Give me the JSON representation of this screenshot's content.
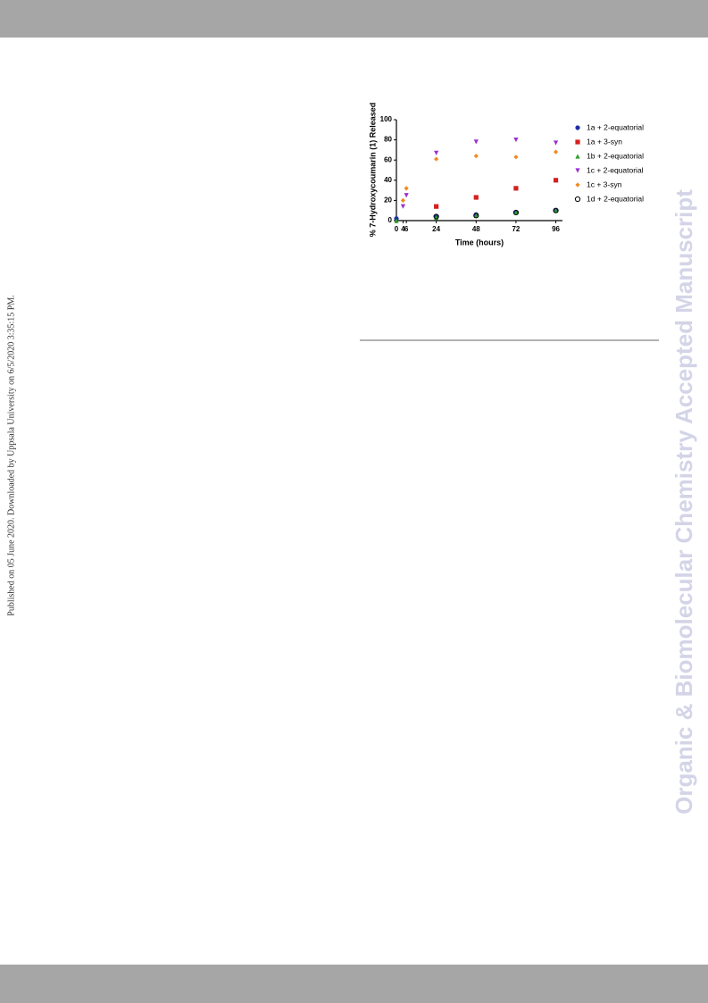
{
  "side_note": "Published on 05 June 2020. Downloaded by Uppsala University on 6/5/2020 3:35:15 PM.",
  "banner": "Organic & Biomolecular Chemistry Accepted Manuscript",
  "chart_data": {
    "type": "scatter",
    "x_label": "Time (hours)",
    "y_label": "% 7-Hydroxycoumarin (1) Released",
    "x": [
      0,
      4,
      6,
      24,
      48,
      72,
      96
    ],
    "xlim": [
      0,
      100
    ],
    "xticks": [
      0,
      4,
      6,
      24,
      48,
      72,
      96
    ],
    "ylim": [
      0,
      100
    ],
    "yticks": [
      0,
      20,
      40,
      60,
      80,
      100
    ],
    "series": [
      {
        "name": "1a + 2-equatorial",
        "color": "#1f2fa8",
        "marker": "circle",
        "values": [
          2,
          null,
          null,
          4,
          6,
          8,
          10
        ]
      },
      {
        "name": "1a + 3-syn",
        "color": "#d42020",
        "marker": "square",
        "values": [
          null,
          null,
          null,
          14,
          23,
          32,
          40
        ]
      },
      {
        "name": "1b + 2-equatorial",
        "color": "#2aa02a",
        "marker": "triangle",
        "values": [
          0,
          null,
          null,
          3,
          5,
          8,
          10
        ]
      },
      {
        "name": "1c + 2-equatorial",
        "color": "#9a30d0",
        "marker": "triangle-down",
        "values": [
          null,
          14,
          25,
          67,
          78,
          80,
          77
        ]
      },
      {
        "name": "1c + 3-syn",
        "color": "#f08a20",
        "marker": "diamond",
        "values": [
          null,
          20,
          32,
          61,
          64,
          63,
          68
        ]
      },
      {
        "name": "1d + 2-equatorial",
        "color": "#000000",
        "marker": "open-circle",
        "values": [
          null,
          null,
          null,
          4,
          5,
          8,
          10
        ]
      }
    ]
  }
}
